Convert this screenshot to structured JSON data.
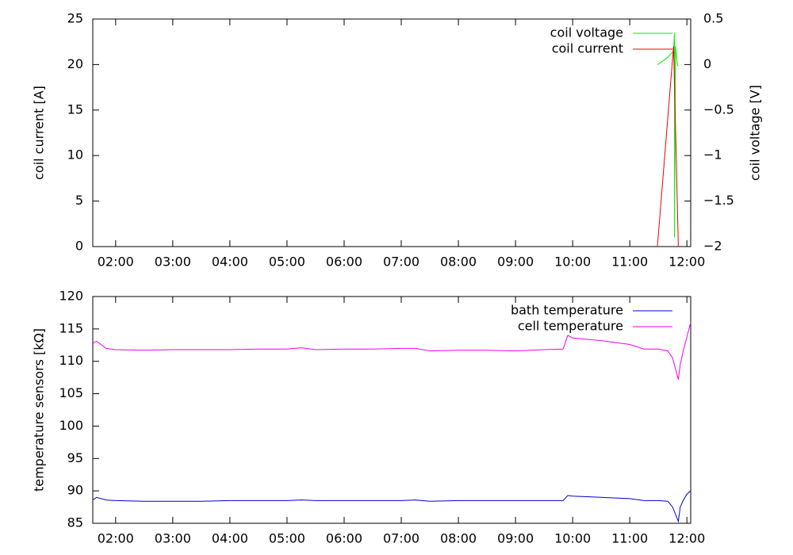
{
  "chart_data": [
    {
      "type": "line",
      "y_label": "coil current [A]",
      "y2_label": "coil voltage [V]",
      "xlim": [
        "01:36",
        "12:04"
      ],
      "xticks": [
        "02:00",
        "03:00",
        "04:00",
        "05:00",
        "06:00",
        "07:00",
        "08:00",
        "09:00",
        "10:00",
        "11:00",
        "12:00"
      ],
      "ylim": [
        0,
        25
      ],
      "yticks": [
        0,
        5,
        10,
        15,
        20,
        25
      ],
      "y2lim": [
        -2,
        0.5
      ],
      "y2ticks": [
        {
          "value": -2,
          "label": "−2"
        },
        {
          "value": -1.5,
          "label": "−1.5"
        },
        {
          "value": -1,
          "label": "−1"
        },
        {
          "value": -0.5,
          "label": "−0.5"
        },
        0,
        0.5
      ],
      "legend": "top-right",
      "series": [
        {
          "name": "coil voltage",
          "color": "#00ee00",
          "axis": "y2",
          "x": [
            "11:29",
            "11:35",
            "11:40",
            "11:46",
            "11:47",
            "11:47",
            "11:48",
            "11:50",
            "11:51"
          ],
          "values": [
            0.0,
            0.04,
            0.08,
            0.15,
            0.35,
            -1.9,
            0.2,
            0.0,
            -0.02
          ]
        },
        {
          "name": "coil current",
          "color": "#ee0000",
          "x": [
            "11:29",
            "11:46",
            "11:51"
          ],
          "values": [
            0,
            22,
            0
          ]
        }
      ]
    },
    {
      "type": "line",
      "y_label": "temperature sensors [kΩ]",
      "xlim": [
        "01:36",
        "12:04"
      ],
      "xticks": [
        "02:00",
        "03:00",
        "04:00",
        "05:00",
        "06:00",
        "07:00",
        "08:00",
        "09:00",
        "10:00",
        "11:00",
        "12:00"
      ],
      "ylim": [
        85,
        120
      ],
      "yticks": [
        85,
        90,
        95,
        100,
        105,
        110,
        115,
        120
      ],
      "legend": "top-right",
      "x": [
        "01:36",
        "01:40",
        "01:50",
        "02:00",
        "02:30",
        "03:00",
        "03:30",
        "04:00",
        "04:30",
        "05:00",
        "05:15",
        "05:30",
        "06:00",
        "06:30",
        "07:00",
        "07:15",
        "07:30",
        "08:00",
        "08:30",
        "09:00",
        "09:30",
        "09:50",
        "09:55",
        "10:00",
        "10:30",
        "11:00",
        "11:15",
        "11:30",
        "11:40",
        "11:45",
        "11:51",
        "11:53",
        "11:56",
        "12:00",
        "12:04"
      ],
      "series": [
        {
          "name": "bath temperature",
          "color": "#0000cc",
          "values": [
            88.6,
            89.0,
            88.6,
            88.5,
            88.4,
            88.4,
            88.4,
            88.5,
            88.5,
            88.5,
            88.6,
            88.5,
            88.5,
            88.5,
            88.5,
            88.6,
            88.4,
            88.5,
            88.5,
            88.5,
            88.5,
            88.5,
            89.3,
            89.2,
            89.0,
            88.8,
            88.5,
            88.5,
            88.4,
            87.5,
            85.3,
            87.5,
            88.5,
            89.5,
            90.0
          ]
        },
        {
          "name": "cell temperature",
          "color": "#ee00ee",
          "values": [
            112.8,
            113.1,
            112.0,
            111.8,
            111.7,
            111.8,
            111.8,
            111.8,
            111.9,
            111.9,
            112.1,
            111.8,
            111.9,
            111.9,
            112.0,
            112.0,
            111.6,
            111.7,
            111.7,
            111.6,
            111.8,
            111.9,
            114.0,
            113.6,
            113.2,
            112.6,
            111.9,
            111.9,
            111.6,
            110.5,
            107.2,
            109.5,
            111.5,
            113.8,
            116.0
          ]
        }
      ]
    }
  ]
}
